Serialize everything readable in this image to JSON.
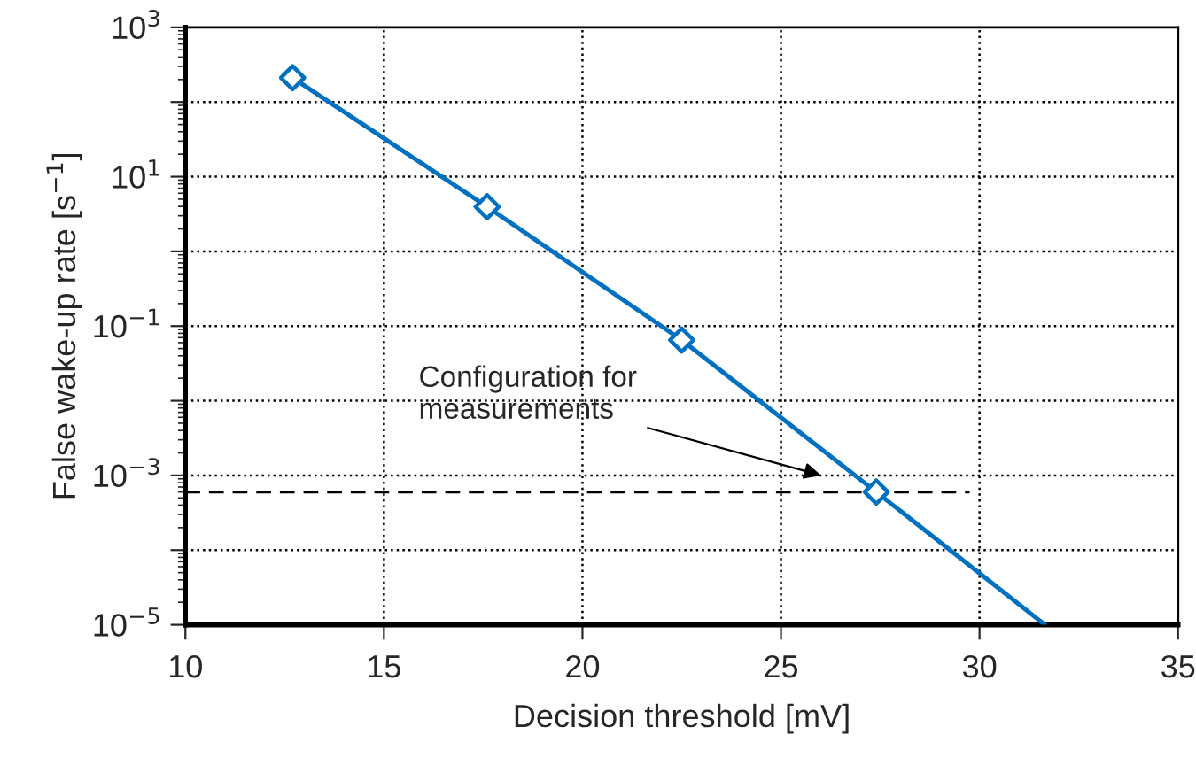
{
  "chart_data": {
    "type": "line",
    "xlabel": "Decision threshold [mV]",
    "ylabel": "False wake-up rate [s$^{−1}$]",
    "series": [
      {
        "color": "#0070c0",
        "x": [
          12.7,
          17.6,
          22.5,
          27.4,
          31.65
        ],
        "values": [
          211,
          3.96,
          0.065,
          0.0006,
          1e-05
        ],
        "marker": "none",
        "line_style": "solid"
      },
      {
        "type": "scatter",
        "color": "#0070c0",
        "x": [
          12.7,
          17.6,
          22.5,
          27.4
        ],
        "values": [
          211,
          3.96,
          0.065,
          0.0006
        ],
        "marker": "diamond"
      },
      {
        "color": "#000000",
        "x": [
          10,
          29.75
        ],
        "values": [
          0.0006,
          0.0006
        ],
        "marker": "none",
        "line_style": "dashed"
      }
    ],
    "annotations": [
      "Configuration for\nmeasurements"
    ],
    "log": "y",
    "xlim": [
      10,
      35
    ],
    "xticks": [
      10,
      15,
      20,
      25,
      30,
      35
    ],
    "ylim": [
      1e-05,
      1000
    ],
    "yticks": [
      {
        "value": 1e-05,
        "label": "10$^{−5}$"
      },
      {
        "value": 0.0001,
        "label": null
      },
      {
        "value": 0.001,
        "label": "10$^{−3}$"
      },
      {
        "value": 0.01,
        "label": null
      },
      {
        "value": 0.1,
        "label": "10$^{−1}$"
      },
      {
        "value": 1,
        "label": null
      },
      {
        "value": 10,
        "label": "10$^{1}$"
      },
      {
        "value": 100,
        "label": null
      },
      {
        "value": 1000,
        "label": "10$^{3}$"
      }
    ],
    "grid": true,
    "legend": false
  }
}
